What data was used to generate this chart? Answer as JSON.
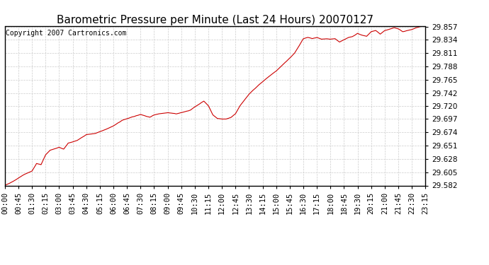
{
  "title": "Barometric Pressure per Minute (Last 24 Hours) 20070127",
  "copyright_text": "Copyright 2007 Cartronics.com",
  "y_ticks": [
    29.582,
    29.605,
    29.628,
    29.651,
    29.674,
    29.697,
    29.72,
    29.742,
    29.765,
    29.788,
    29.811,
    29.834,
    29.857
  ],
  "ylim": [
    29.582,
    29.857
  ],
  "x_tick_labels": [
    "00:00",
    "00:45",
    "01:30",
    "02:15",
    "03:00",
    "03:45",
    "04:30",
    "05:15",
    "06:00",
    "06:45",
    "07:30",
    "08:15",
    "09:00",
    "09:45",
    "10:30",
    "11:15",
    "12:00",
    "12:45",
    "13:30",
    "14:15",
    "15:00",
    "15:45",
    "16:30",
    "17:15",
    "18:00",
    "18:45",
    "19:30",
    "20:15",
    "21:00",
    "21:45",
    "22:30",
    "23:15"
  ],
  "line_color": "#cc0000",
  "background_color": "#ffffff",
  "plot_bg_color": "#ffffff",
  "grid_color": "#cccccc",
  "title_fontsize": 11,
  "copyright_fontsize": 7,
  "tick_fontsize": 7.5,
  "control_points_x": [
    0,
    30,
    60,
    90,
    105,
    120,
    135,
    150,
    180,
    195,
    210,
    240,
    270,
    300,
    330,
    360,
    390,
    420,
    450,
    480,
    495,
    510,
    540,
    570,
    600,
    615,
    630,
    645,
    660,
    675,
    690,
    705,
    720,
    735,
    750,
    765,
    780,
    810,
    840,
    870,
    900,
    930,
    960,
    990,
    1005,
    1020,
    1035,
    1050,
    1065,
    1080,
    1095,
    1110,
    1125,
    1140,
    1155,
    1170,
    1185,
    1200,
    1215,
    1230,
    1245,
    1260,
    1275,
    1290,
    1305,
    1320,
    1335,
    1350,
    1365,
    1380,
    1394
  ],
  "control_points_y": [
    29.582,
    29.59,
    29.6,
    29.607,
    29.62,
    29.618,
    29.635,
    29.643,
    29.648,
    29.645,
    29.655,
    29.66,
    29.67,
    29.672,
    29.678,
    29.685,
    29.695,
    29.7,
    29.705,
    29.7,
    29.704,
    29.706,
    29.708,
    29.706,
    29.71,
    29.712,
    29.718,
    29.723,
    29.728,
    29.72,
    29.704,
    29.698,
    29.697,
    29.697,
    29.7,
    29.706,
    29.72,
    29.74,
    29.755,
    29.768,
    29.78,
    29.795,
    29.81,
    29.836,
    29.838,
    29.836,
    29.838,
    29.835,
    29.836,
    29.835,
    29.836,
    29.83,
    29.834,
    29.838,
    29.84,
    29.845,
    29.842,
    29.84,
    29.848,
    29.85,
    29.844,
    29.85,
    29.852,
    29.855,
    29.853,
    29.848,
    29.85,
    29.852,
    29.855,
    29.857,
    29.862
  ]
}
